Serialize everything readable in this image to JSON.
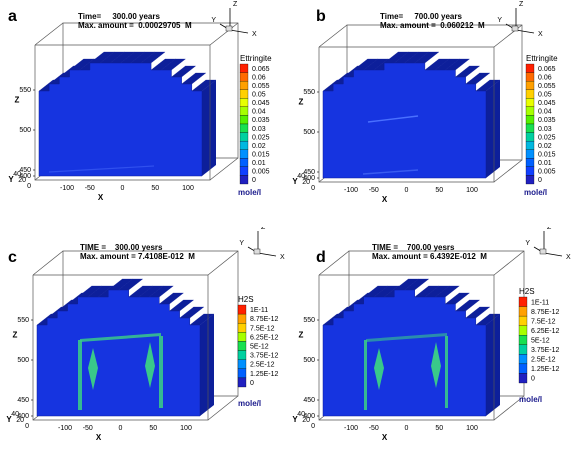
{
  "panels": [
    {
      "label": "a",
      "time_line": "Time=     300.00 years",
      "max_line": "Max. amount =  0.00029705  M",
      "species": "Ettringite",
      "unit": "mole/l",
      "levels": [
        "0.065",
        "0.06",
        "0.055",
        "0.05",
        "0.045",
        "0.04",
        "0.035",
        "0.03",
        "0.025",
        "0.02",
        "0.015",
        "0.01",
        "0.005",
        "0"
      ],
      "features": "none"
    },
    {
      "label": "b",
      "time_line": "Time=     700.00 years",
      "max_line": "Max. amount =  0.060212  M",
      "species": "Ettringite",
      "unit": "mole/l",
      "levels": [
        "0.065",
        "0.06",
        "0.055",
        "0.05",
        "0.045",
        "0.04",
        "0.035",
        "0.03",
        "0.025",
        "0.02",
        "0.015",
        "0.01",
        "0.005",
        "0"
      ],
      "features": "faint-line"
    },
    {
      "label": "c",
      "time_line": "TIME =    300.00 yesrs",
      "max_line": "Max. amount = 7.4108E-012  M",
      "species": "H2S",
      "unit": "mole/l",
      "levels": [
        "1E-11",
        "8.75E-12",
        "7.5E-12",
        "6.25E-12",
        "5E-12",
        "3.75E-12",
        "2.5E-12",
        "1.25E-12",
        "0"
      ],
      "features": "pillars"
    },
    {
      "label": "d",
      "time_line": "TIME =    700.00 yesrs",
      "max_line": "Max. amount = 6.4392E-012  M",
      "species": "H2S",
      "unit": "mole/l",
      "levels": [
        "1E-11",
        "8.75E-12",
        "7.5E-12",
        "6.25E-12",
        "5E-12",
        "3.75E-12",
        "2.5E-12",
        "1.25E-12",
        "0"
      ],
      "features": "pillars-thin"
    }
  ],
  "axes": {
    "x_label": "X",
    "y_label": "Y",
    "z_label": "Z",
    "x_ticks": [
      "-100",
      "-50",
      "0",
      "50",
      "100"
    ],
    "y_ticks": [
      "0",
      "20",
      "40"
    ],
    "z_ticks": [
      "550",
      "500",
      "450",
      "400"
    ]
  },
  "orientation": {
    "x": "X",
    "y": "Y",
    "z": "Z"
  },
  "colors": {
    "body": "#1634e0",
    "body_dark": "#0d1f9a",
    "body_top": "#2a48e6",
    "feature": "#39c98a",
    "scale": [
      "#ff2000",
      "#ff6a00",
      "#ffa000",
      "#ffd000",
      "#e8ff00",
      "#a6ff00",
      "#55f000",
      "#18e050",
      "#00d0a0",
      "#00b8e0",
      "#0090ff",
      "#0060ff",
      "#1040ff",
      "#2020c0"
    ]
  }
}
